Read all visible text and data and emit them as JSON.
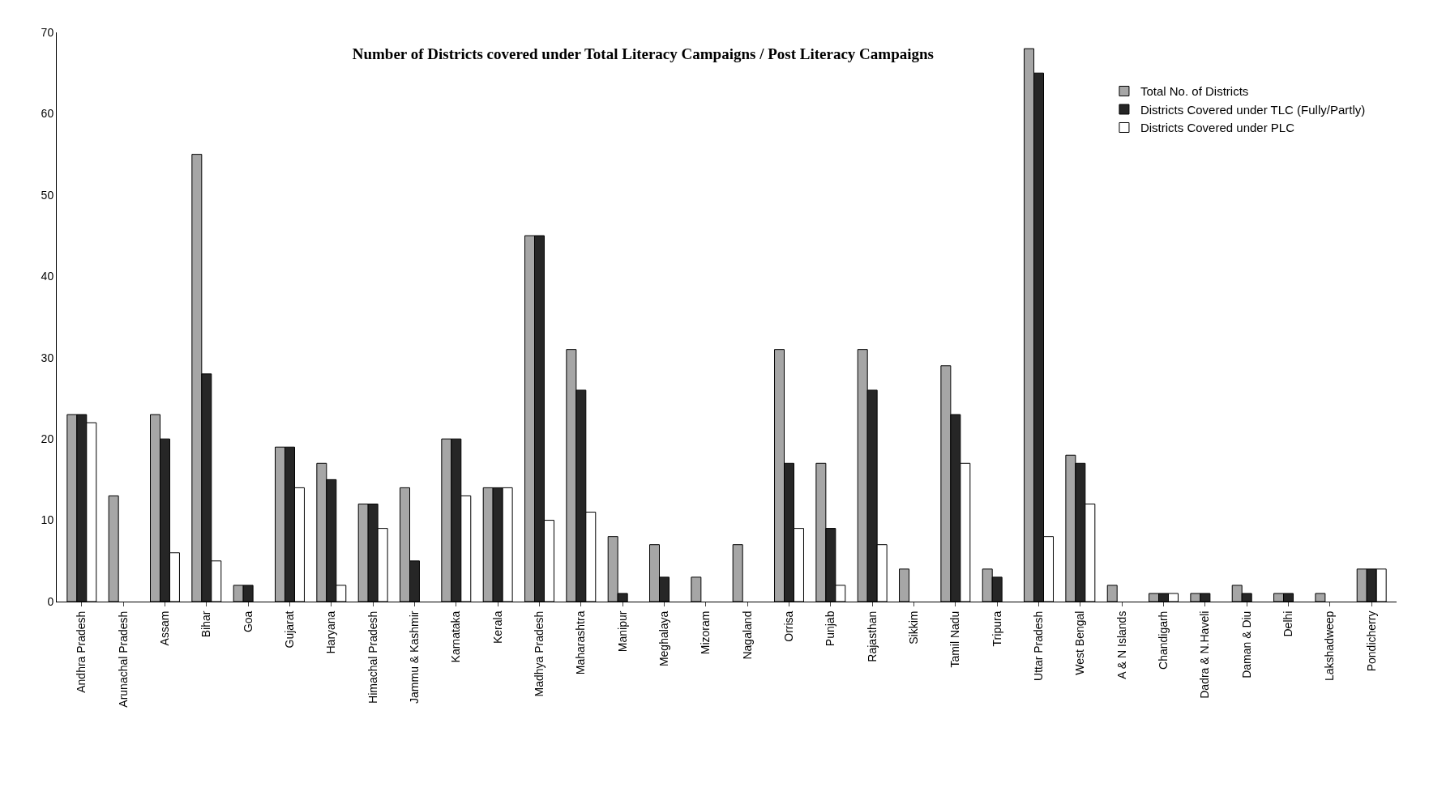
{
  "chart_data": {
    "type": "bar",
    "title": "Number of Districts covered under Total Literacy Campaigns / Post Literacy Campaigns",
    "categories": [
      "Andhra Pradesh",
      "Arunachal Pradesh",
      "Assam",
      "Bihar",
      "Goa",
      "Gujarat",
      "Haryana",
      "Himachal Pradesh",
      "Jammu & Kashmir",
      "Karnataka",
      "Kerala",
      "Madhya Pradesh",
      "Maharashtra",
      "Manipur",
      "Meghalaya",
      "Mizoram",
      "Nagaland",
      "Orrisa",
      "Punjab",
      "Rajasthan",
      "Sikkim",
      "Tamil Nadu",
      "Tripura",
      "Uttar Pradesh",
      "West Bengal",
      "A & N Islands",
      "Chandigarh",
      "Dadra & N.Haveli",
      "Daman & Diu",
      "Delhi",
      "Lakshadweep",
      "Pondicherry"
    ],
    "series": [
      {
        "name": "Total No. of Districts",
        "color": "#a6a6a6",
        "values": [
          23,
          13,
          23,
          55,
          2,
          19,
          17,
          12,
          14,
          20,
          14,
          45,
          31,
          8,
          7,
          3,
          7,
          31,
          17,
          31,
          4,
          29,
          4,
          68,
          18,
          2,
          1,
          1,
          2,
          1,
          1,
          4
        ]
      },
      {
        "name": "Districts Covered under TLC (Fully/Partly)",
        "color": "#262626",
        "values": [
          23,
          0,
          20,
          28,
          2,
          19,
          15,
          12,
          5,
          20,
          14,
          45,
          26,
          1,
          3,
          0,
          0,
          17,
          9,
          26,
          0,
          23,
          3,
          65,
          17,
          0,
          1,
          1,
          1,
          1,
          0,
          4
        ]
      },
      {
        "name": "Districts Covered under PLC",
        "color": "#ffffff",
        "values": [
          22,
          0,
          6,
          5,
          0,
          14,
          2,
          9,
          0,
          13,
          14,
          10,
          11,
          0,
          0,
          0,
          0,
          9,
          2,
          7,
          0,
          17,
          0,
          8,
          12,
          0,
          1,
          0,
          0,
          0,
          0,
          4
        ]
      }
    ],
    "ylim": [
      0,
      70
    ],
    "yticks": [
      0,
      10,
      20,
      30,
      40,
      50,
      60,
      70
    ],
    "legend": "top right"
  }
}
